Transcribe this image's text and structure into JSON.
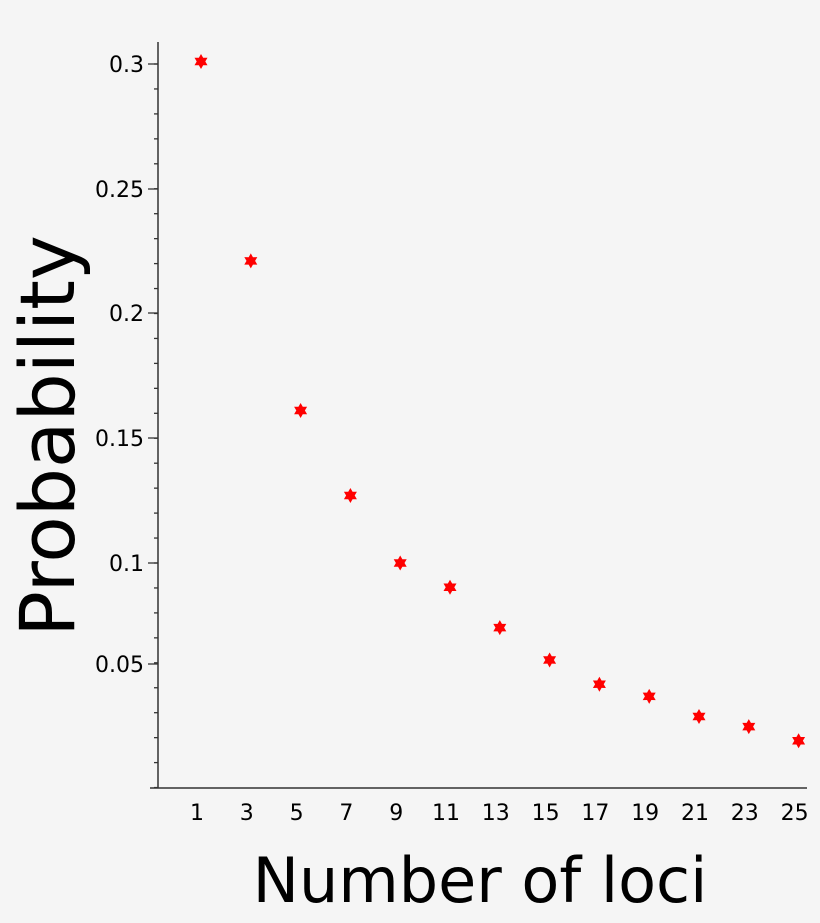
{
  "chart_data": {
    "type": "scatter",
    "title": "",
    "xlabel": "Number of loci",
    "ylabel": "Probability",
    "x": [
      1,
      3,
      5,
      7,
      9,
      11,
      13,
      15,
      17,
      19,
      21,
      23,
      25
    ],
    "y": [
      0.301,
      0.221,
      0.161,
      0.127,
      0.1,
      0.088,
      0.068,
      0.052,
      0.04,
      0.034,
      0.024,
      0.019,
      0.012
    ],
    "x_ticks": [
      "1",
      "3",
      "5",
      "7",
      "9",
      "11",
      "13",
      "15",
      "17",
      "19",
      "21",
      "23",
      "25"
    ],
    "y_ticks": [
      {
        "value": 0.3,
        "label": "0.3"
      },
      {
        "value": 0.25,
        "label": "0.25"
      },
      {
        "value": 0.2,
        "label": "0.2"
      },
      {
        "value": 0.15,
        "label": "0.15"
      },
      {
        "value": 0.1,
        "label": "0.1"
      },
      {
        "value": 0.05,
        "label": "0.05"
      }
    ],
    "marker": "star",
    "marker_color": "#ff0000",
    "grid": false,
    "legend": "none"
  }
}
